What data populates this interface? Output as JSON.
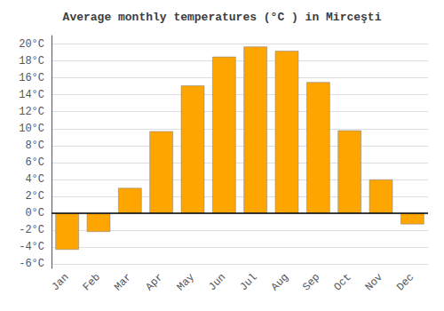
{
  "chart_data": {
    "type": "bar",
    "title": "Average monthly temperatures (°C ) in Mirceşti",
    "categories": [
      "Jan",
      "Feb",
      "Mar",
      "Apr",
      "May",
      "Jun",
      "Jul",
      "Aug",
      "Sep",
      "Oct",
      "Nov",
      "Dec"
    ],
    "values": [
      -4.3,
      -2.2,
      3.0,
      9.7,
      15.1,
      18.5,
      19.7,
      19.2,
      15.5,
      9.8,
      4.0,
      -1.3
    ],
    "color": "#FFA500",
    "ylim": [
      -6.5,
      21
    ],
    "yticks": [
      {
        "value": -6,
        "label": "-6°C"
      },
      {
        "value": -4,
        "label": "-4°C"
      },
      {
        "value": -2,
        "label": "-2°C"
      },
      {
        "value": 0,
        "label": "0°C"
      },
      {
        "value": 2,
        "label": "2°C"
      },
      {
        "value": 4,
        "label": "4°C"
      },
      {
        "value": 6,
        "label": "6°C"
      },
      {
        "value": 8,
        "label": "8°C"
      },
      {
        "value": 10,
        "label": "10°C"
      },
      {
        "value": 12,
        "label": "12°C"
      },
      {
        "value": 14,
        "label": "14°C"
      },
      {
        "value": 16,
        "label": "16°C"
      },
      {
        "value": 18,
        "label": "18°C"
      },
      {
        "value": 20,
        "label": "20°C"
      }
    ],
    "grid": true
  }
}
